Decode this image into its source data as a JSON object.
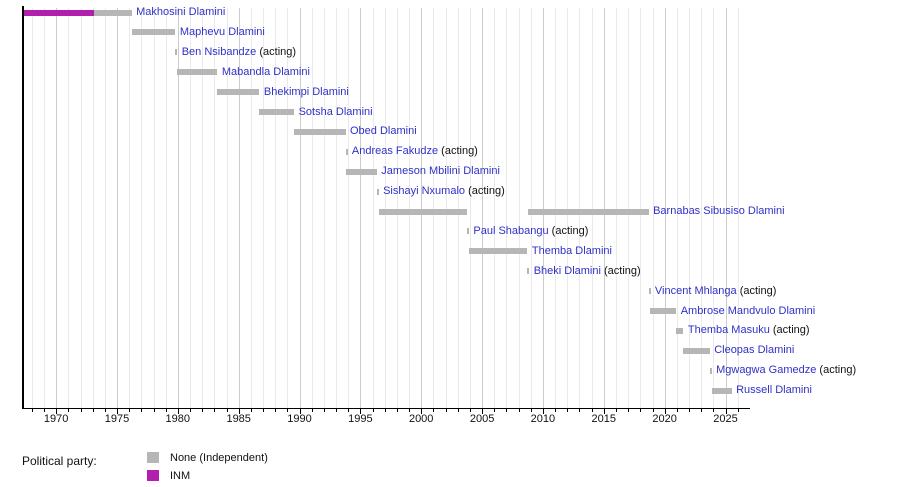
{
  "page": {
    "background": "#ffffff"
  },
  "chart_data": {
    "type": "bar",
    "subtype": "timeline-gantt",
    "title": "",
    "xlabel": "",
    "ylabel": "",
    "x_axis": {
      "start": 1967.36,
      "end": 2026.8,
      "minor_tick_interval": 1,
      "minor_tick_start": 1968,
      "minor_tick_end": 2026,
      "major_ticks": [
        1970,
        1975,
        1980,
        1985,
        1990,
        1995,
        2000,
        2005,
        2010,
        2015,
        2020,
        2025
      ],
      "gridlines": true
    },
    "party_colors": {
      "None": "#b6b6b6",
      "INM": "#b21fae"
    },
    "rows": [
      {
        "name": "Makhosini Dlamini",
        "suffix": "",
        "segments": [
          {
            "party": "INM",
            "start": 1967.36,
            "end": 1973.1
          },
          {
            "party": "None",
            "start": 1973.1,
            "end": 1976.2
          }
        ]
      },
      {
        "name": "Maphevu Dlamini",
        "suffix": "",
        "segments": [
          {
            "party": "None",
            "start": 1976.2,
            "end": 1979.8
          }
        ]
      },
      {
        "name": "Ben Nsibandze",
        "suffix": " (acting)",
        "segments": [
          {
            "party": "None",
            "start": 1979.8,
            "end": 1979.95
          }
        ]
      },
      {
        "name": "Mabandla Dlamini",
        "suffix": "",
        "segments": [
          {
            "party": "None",
            "start": 1979.95,
            "end": 1983.25
          }
        ]
      },
      {
        "name": "Bhekimpi Dlamini",
        "suffix": "",
        "segments": [
          {
            "party": "None",
            "start": 1983.25,
            "end": 1986.7
          }
        ]
      },
      {
        "name": "Sotsha Dlamini",
        "suffix": "",
        "segments": [
          {
            "party": "None",
            "start": 1986.7,
            "end": 1989.55
          }
        ]
      },
      {
        "name": "Obed Dlamini",
        "suffix": "",
        "segments": [
          {
            "party": "None",
            "start": 1989.55,
            "end": 1993.78
          }
        ]
      },
      {
        "name": "Andreas Fakudze",
        "suffix": " (acting)",
        "segments": [
          {
            "party": "None",
            "start": 1993.78,
            "end": 1993.93
          }
        ]
      },
      {
        "name": "Jameson Mbilini Dlamini",
        "suffix": "",
        "segments": [
          {
            "party": "None",
            "start": 1993.8,
            "end": 1996.35
          }
        ]
      },
      {
        "name": "Sishayi Nxumalo",
        "suffix": " (acting)",
        "segments": [
          {
            "party": "None",
            "start": 1996.35,
            "end": 1996.5
          }
        ]
      },
      {
        "name": "Barnabas Sibusiso Dlamini",
        "suffix": "",
        "segments": [
          {
            "party": "None",
            "start": 1996.5,
            "end": 2003.78
          },
          {
            "party": "None",
            "start": 2008.78,
            "end": 2018.68
          }
        ]
      },
      {
        "name": "Paul Shabangu",
        "suffix": " (acting)",
        "segments": [
          {
            "party": "None",
            "start": 2003.78,
            "end": 2003.92
          }
        ]
      },
      {
        "name": "Themba Dlamini",
        "suffix": "",
        "segments": [
          {
            "party": "None",
            "start": 2003.92,
            "end": 2008.72
          }
        ]
      },
      {
        "name": "Bheki Dlamini",
        "suffix": " (acting)",
        "segments": [
          {
            "party": "None",
            "start": 2008.72,
            "end": 2008.87
          }
        ]
      },
      {
        "name": "Vincent Mhlanga",
        "suffix": " (acting)",
        "segments": [
          {
            "party": "None",
            "start": 2018.68,
            "end": 2018.83
          }
        ]
      },
      {
        "name": "Ambrose Mandvulo Dlamini",
        "suffix": "",
        "segments": [
          {
            "party": "None",
            "start": 2018.83,
            "end": 2020.95
          }
        ]
      },
      {
        "name": "Themba Masuku",
        "suffix": " (acting)",
        "segments": [
          {
            "party": "None",
            "start": 2020.95,
            "end": 2021.54
          }
        ]
      },
      {
        "name": "Cleopas Dlamini",
        "suffix": "",
        "segments": [
          {
            "party": "None",
            "start": 2021.54,
            "end": 2023.7
          }
        ]
      },
      {
        "name": "Mgwagwa Gamedze",
        "suffix": " (acting)",
        "segments": [
          {
            "party": "None",
            "start": 2023.7,
            "end": 2023.86
          }
        ]
      },
      {
        "name": "Russell Dlamini",
        "suffix": "",
        "segments": [
          {
            "party": "None",
            "start": 2023.86,
            "end": 2025.5
          }
        ]
      }
    ]
  },
  "legend": {
    "title": "Political party:",
    "items": [
      {
        "label": "None (Independent)",
        "color": "#b6b6b6"
      },
      {
        "label": "INM",
        "color": "#b21fae"
      }
    ]
  },
  "colors": {
    "link_blue": "#3030c8",
    "axis": "#000000",
    "grid_minor": "#eaeaea",
    "grid_major": "#cccccc",
    "text": "#111111"
  }
}
